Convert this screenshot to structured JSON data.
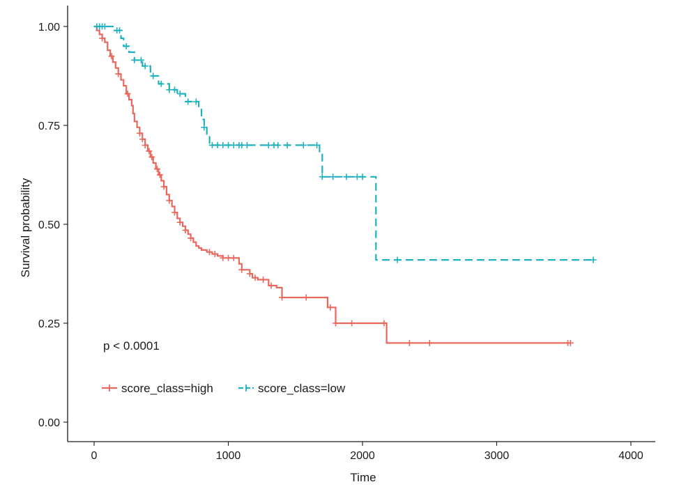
{
  "chart_data": {
    "type": "line",
    "subtype": "kaplan-meier survival curve",
    "title": "",
    "xlabel": "Time",
    "ylabel": "Survival probability",
    "xlim": [
      -100,
      4200
    ],
    "ylim": [
      -0.05,
      1.05
    ],
    "x_ticks": [
      "0",
      "1000",
      "2000",
      "3000",
      "4000"
    ],
    "x_tick_values": [
      0,
      1000,
      2000,
      3000,
      4000
    ],
    "y_ticks": [
      "0.00",
      "0.25",
      "0.50",
      "0.75",
      "1.00"
    ],
    "y_tick_values": [
      0,
      0.25,
      0.5,
      0.75,
      1.0
    ],
    "grid": false,
    "legend_position": "bottom-left inside",
    "annotation": "p < 0.0001",
    "series": [
      {
        "name": "score_class=high",
        "color": "#E8685E",
        "line_style": "solid",
        "steps": [
          [
            0,
            1.0
          ],
          [
            20,
            0.99
          ],
          [
            40,
            0.98
          ],
          [
            60,
            0.97
          ],
          [
            80,
            0.96
          ],
          [
            100,
            0.94
          ],
          [
            120,
            0.925
          ],
          [
            140,
            0.91
          ],
          [
            160,
            0.895
          ],
          [
            180,
            0.88
          ],
          [
            200,
            0.865
          ],
          [
            220,
            0.85
          ],
          [
            240,
            0.83
          ],
          [
            260,
            0.815
          ],
          [
            280,
            0.8
          ],
          [
            290,
            0.78
          ],
          [
            300,
            0.76
          ],
          [
            320,
            0.745
          ],
          [
            340,
            0.73
          ],
          [
            360,
            0.715
          ],
          [
            380,
            0.7
          ],
          [
            400,
            0.685
          ],
          [
            420,
            0.67
          ],
          [
            440,
            0.655
          ],
          [
            460,
            0.64
          ],
          [
            480,
            0.625
          ],
          [
            500,
            0.61
          ],
          [
            520,
            0.595
          ],
          [
            540,
            0.575
          ],
          [
            560,
            0.56
          ],
          [
            580,
            0.545
          ],
          [
            600,
            0.53
          ],
          [
            620,
            0.515
          ],
          [
            640,
            0.505
          ],
          [
            660,
            0.495
          ],
          [
            680,
            0.485
          ],
          [
            700,
            0.475
          ],
          [
            720,
            0.465
          ],
          [
            740,
            0.455
          ],
          [
            760,
            0.445
          ],
          [
            780,
            0.44
          ],
          [
            800,
            0.435
          ],
          [
            840,
            0.43
          ],
          [
            880,
            0.425
          ],
          [
            920,
            0.42
          ],
          [
            960,
            0.415
          ],
          [
            1080,
            0.4
          ],
          [
            1100,
            0.385
          ],
          [
            1160,
            0.375
          ],
          [
            1180,
            0.365
          ],
          [
            1220,
            0.36
          ],
          [
            1300,
            0.345
          ],
          [
            1360,
            0.34
          ],
          [
            1400,
            0.315
          ],
          [
            1740,
            0.29
          ],
          [
            1800,
            0.25
          ],
          [
            2180,
            0.2
          ],
          [
            3550,
            0.2
          ]
        ],
        "censor_times": [
          60,
          130,
          180,
          250,
          340,
          360,
          380,
          410,
          430,
          470,
          490,
          520,
          560,
          600,
          640,
          680,
          720,
          860,
          900,
          960,
          1000,
          1040,
          1100,
          1160,
          1200,
          1260,
          1320,
          1400,
          1580,
          1760,
          1800,
          1920,
          2160,
          2350,
          2500,
          3530,
          3550
        ]
      },
      {
        "name": "score_class=low",
        "color": "#1FB1BF",
        "line_style": "dashed",
        "steps": [
          [
            0,
            1.0
          ],
          [
            140,
            0.99
          ],
          [
            200,
            0.97
          ],
          [
            220,
            0.95
          ],
          [
            260,
            0.935
          ],
          [
            300,
            0.915
          ],
          [
            360,
            0.9
          ],
          [
            420,
            0.875
          ],
          [
            480,
            0.855
          ],
          [
            560,
            0.84
          ],
          [
            620,
            0.83
          ],
          [
            680,
            0.81
          ],
          [
            780,
            0.79
          ],
          [
            800,
            0.765
          ],
          [
            820,
            0.745
          ],
          [
            840,
            0.725
          ],
          [
            860,
            0.7
          ],
          [
            1680,
            0.68
          ],
          [
            1700,
            0.62
          ],
          [
            2100,
            0.41
          ],
          [
            3720,
            0.41
          ]
        ],
        "censor_times": [
          20,
          40,
          60,
          80,
          170,
          190,
          240,
          300,
          350,
          380,
          440,
          500,
          560,
          600,
          640,
          700,
          760,
          820,
          880,
          920,
          960,
          1000,
          1040,
          1080,
          1100,
          1140,
          1300,
          1340,
          1370,
          1440,
          1560,
          1660,
          1700,
          1780,
          1880,
          1960,
          2000,
          2260,
          3720
        ]
      }
    ]
  }
}
